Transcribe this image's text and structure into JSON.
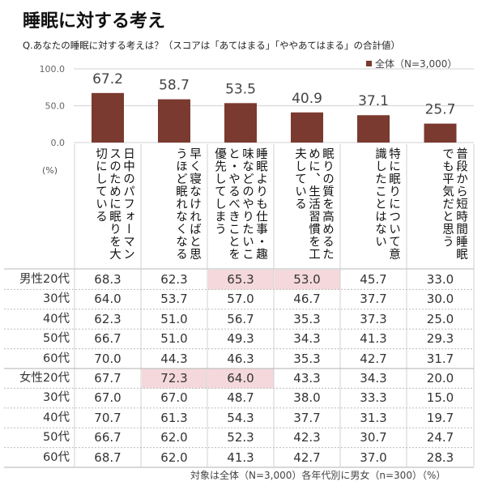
{
  "title": "睡眠に対する考え",
  "subtitle": "Q.あなたの睡眠に対する考えは？（スコアは「あてはまる」「ややあてはまる」の合計値）",
  "footer": "対象は全体（N=3,000）各年代別に男女（n=300）（%）",
  "colors": {
    "bar": "#7b3a2f",
    "highlight": "#f4d8dc"
  },
  "chart_data": {
    "type": "bar",
    "categories": [
      "日中のパフォーマンスのために眠りを大切にしている",
      "早く寝なければと思うほど眠れなくなる",
      "睡眠よりも仕事・趣味などのやりたいこと・やるべきことを優先してしまう",
      "眠りの質を高めるために、生活習慣を工夫している",
      "特に眠りについて意識したことはない",
      "普段から短時間睡眠でも平気だと思う"
    ],
    "series": [
      {
        "name": "全体（N=3,000）",
        "values": [
          67.2,
          58.7,
          53.5,
          40.9,
          37.1,
          25.7
        ]
      }
    ],
    "data_labels": [
      "67.2",
      "58.7",
      "53.5",
      "40.9",
      "37.1",
      "25.7"
    ],
    "ylim": [
      0,
      100
    ],
    "yticks": [
      "100.0",
      "50.0",
      "0.0"
    ],
    "ylabel": "(%)",
    "legend": "top-right",
    "grid": true
  },
  "table": {
    "rows": [
      {
        "label": "男性20代",
        "values": [
          "68.3",
          "62.3",
          "65.3",
          "53.0",
          "45.7",
          "33.0"
        ],
        "highlight": [
          2,
          3
        ]
      },
      {
        "label": "30代",
        "values": [
          "64.0",
          "53.7",
          "57.0",
          "46.7",
          "37.7",
          "30.0"
        ],
        "highlight": []
      },
      {
        "label": "40代",
        "values": [
          "62.3",
          "51.0",
          "56.7",
          "35.3",
          "37.3",
          "25.0"
        ],
        "highlight": []
      },
      {
        "label": "50代",
        "values": [
          "66.7",
          "51.0",
          "49.3",
          "34.3",
          "41.3",
          "29.3"
        ],
        "highlight": []
      },
      {
        "label": "60代",
        "values": [
          "70.0",
          "44.3",
          "46.3",
          "35.3",
          "42.7",
          "31.7"
        ],
        "highlight": []
      },
      {
        "label": "女性20代",
        "values": [
          "67.7",
          "72.3",
          "64.0",
          "43.3",
          "34.3",
          "20.0"
        ],
        "highlight": [
          1,
          2
        ]
      },
      {
        "label": "30代",
        "values": [
          "67.0",
          "67.0",
          "48.7",
          "38.0",
          "33.3",
          "15.0"
        ],
        "highlight": []
      },
      {
        "label": "40代",
        "values": [
          "70.7",
          "61.3",
          "54.3",
          "37.7",
          "31.3",
          "19.7"
        ],
        "highlight": []
      },
      {
        "label": "50代",
        "values": [
          "66.7",
          "62.0",
          "52.3",
          "42.3",
          "30.7",
          "24.7"
        ],
        "highlight": []
      },
      {
        "label": "60代",
        "values": [
          "68.7",
          "62.0",
          "41.3",
          "42.7",
          "37.0",
          "28.3"
        ],
        "highlight": []
      }
    ]
  }
}
